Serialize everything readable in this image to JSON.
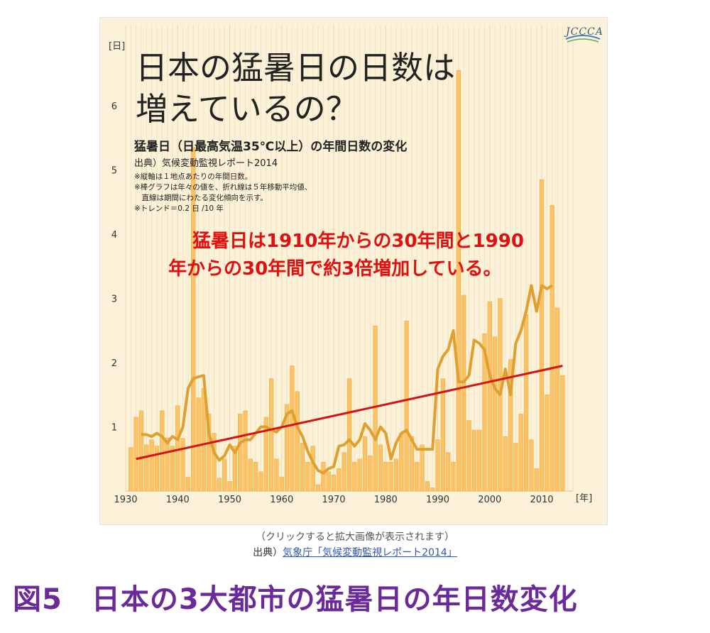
{
  "chart": {
    "title_line1": "日本の猛暑日の日数は",
    "title_line2": "増えているの？",
    "subtitle": "猛暑日（日最高気温35℃以上）の年間日数の変化",
    "source": "出典）気候変動監視レポート2014",
    "notes": [
      "※縦軸は１地点あたりの年間日数。",
      "※棒グラフは年々の値を、折れ線は５年移動平均値、",
      "　直線は期間にわたる変化傾向を示す。",
      "※トレンド＝0.2 日 /10 年"
    ],
    "logo_text": "JCCCA",
    "annotation_line1": "猛暑日は1910年からの30年間と1990",
    "annotation_line2": "年からの30年間で約3倍増加している。"
  },
  "caption": "（クリックすると拡大画像が表示されます）",
  "source_line": {
    "prefix": "出典）",
    "link": "気象庁「気候変動監視レポート2014」"
  },
  "figure_title": "図5　日本の3大都市の猛暑日の年日数変化",
  "colors": {
    "background": "#fbf2d9",
    "bar": "#fbc266",
    "moving_average": "#e0a030",
    "trend": "#d41414",
    "annotation": "#e01010",
    "figure_title": "#6a2a9a"
  },
  "chart_data": {
    "type": "bar",
    "ylabel": "[日]",
    "xlabel": "[年]",
    "ylim": [
      0,
      6.6
    ],
    "xlim": [
      1930,
      2016
    ],
    "yticks": [
      1,
      2,
      3,
      4,
      5,
      6
    ],
    "xticks": [
      1930,
      1940,
      1950,
      1960,
      1970,
      1980,
      1990,
      2000,
      2010
    ],
    "grid": "vertical",
    "series": [
      {
        "type": "bar",
        "x": [
          1931,
          1932,
          1933,
          1934,
          1935,
          1936,
          1937,
          1938,
          1939,
          1940,
          1941,
          1942,
          1943,
          1944,
          1945,
          1946,
          1947,
          1948,
          1949,
          1950,
          1951,
          1952,
          1953,
          1954,
          1955,
          1956,
          1957,
          1958,
          1959,
          1960,
          1961,
          1962,
          1963,
          1964,
          1965,
          1966,
          1967,
          1968,
          1969,
          1970,
          1971,
          1972,
          1973,
          1974,
          1975,
          1976,
          1977,
          1978,
          1979,
          1980,
          1981,
          1982,
          1983,
          1984,
          1985,
          1986,
          1987,
          1988,
          1989,
          1990,
          1991,
          1992,
          1993,
          1994,
          1995,
          1996,
          1997,
          1998,
          1999,
          2000,
          2001,
          2002,
          2003,
          2004,
          2005,
          2006,
          2007,
          2008,
          2009,
          2010,
          2011,
          2012,
          2013,
          2014
        ],
        "values": [
          0.68,
          1.15,
          1.25,
          0.72,
          0.8,
          0.7,
          1.25,
          0.83,
          0.7,
          1.33,
          0.82,
          0.22,
          5.35,
          1.45,
          1.6,
          1.2,
          0.9,
          0.2,
          0.5,
          0.15,
          0.7,
          1.2,
          1.25,
          0.5,
          0.45,
          0.3,
          1.15,
          1.75,
          0.5,
          0.22,
          1.35,
          1.95,
          1.55,
          0.75,
          0.45,
          0.7,
          0.1,
          0.45,
          0.3,
          0.25,
          0.35,
          0.6,
          1.75,
          0.45,
          0.5,
          0.85,
          0.55,
          2.57,
          0.72,
          0.45,
          0.45,
          0.5,
          0.9,
          2.65,
          0.85,
          0.45,
          0.72,
          0.15,
          0.05,
          0.8,
          1.75,
          0.6,
          0.45,
          6.55,
          3.05,
          1.1,
          0.95,
          0.95,
          2.45,
          2.95,
          2.4,
          3.0,
          0.85,
          2.05,
          0.75,
          1.2,
          2.75,
          0.8,
          0.35,
          4.85,
          1.5,
          4.45,
          2.85,
          1.8
        ]
      },
      {
        "type": "line",
        "name": "",
        "x": [
          1933,
          1934,
          1935,
          1936,
          1937,
          1938,
          1939,
          1940,
          1941,
          1942,
          1943,
          1944,
          1945,
          1946,
          1947,
          1948,
          1949,
          1950,
          1951,
          1952,
          1953,
          1954,
          1955,
          1956,
          1957,
          1958,
          1959,
          1960,
          1961,
          1962,
          1963,
          1964,
          1965,
          1966,
          1967,
          1968,
          1969,
          1970,
          1971,
          1972,
          1973,
          1974,
          1975,
          1976,
          1977,
          1978,
          1979,
          1980,
          1981,
          1982,
          1983,
          1984,
          1985,
          1986,
          1987,
          1988,
          1989,
          1990,
          1991,
          1992,
          1993,
          1994,
          1995,
          1996,
          1997,
          1998,
          1999,
          2000,
          2001,
          2002,
          2003,
          2004,
          2005,
          2006,
          2007,
          2008,
          2009,
          2010,
          2011,
          2012
        ],
        "values": [
          0.88,
          0.88,
          0.85,
          0.9,
          0.85,
          0.75,
          0.85,
          0.8,
          1.0,
          1.6,
          1.75,
          1.78,
          1.8,
          0.9,
          0.6,
          0.48,
          0.55,
          0.72,
          0.6,
          0.75,
          0.8,
          0.8,
          0.9,
          1.0,
          1.0,
          0.95,
          0.92,
          1.0,
          1.2,
          1.25,
          1.0,
          0.85,
          0.62,
          0.45,
          0.32,
          0.28,
          0.35,
          0.38,
          0.7,
          0.72,
          0.8,
          0.7,
          0.8,
          1.05,
          0.95,
          0.8,
          1.0,
          0.9,
          0.5,
          0.75,
          0.9,
          0.95,
          0.8,
          0.65,
          0.65,
          0.65,
          0.65,
          1.9,
          2.1,
          2.2,
          2.5,
          1.7,
          1.7,
          1.8,
          2.35,
          2.3,
          2.2,
          1.8,
          1.6,
          1.5,
          1.9,
          1.5,
          2.3,
          2.5,
          2.8,
          3.2,
          2.8,
          3.2,
          3.15,
          3.2
        ]
      },
      {
        "type": "line",
        "name": "",
        "x": [
          1932,
          2014
        ],
        "values": [
          0.5,
          1.95
        ]
      }
    ]
  }
}
